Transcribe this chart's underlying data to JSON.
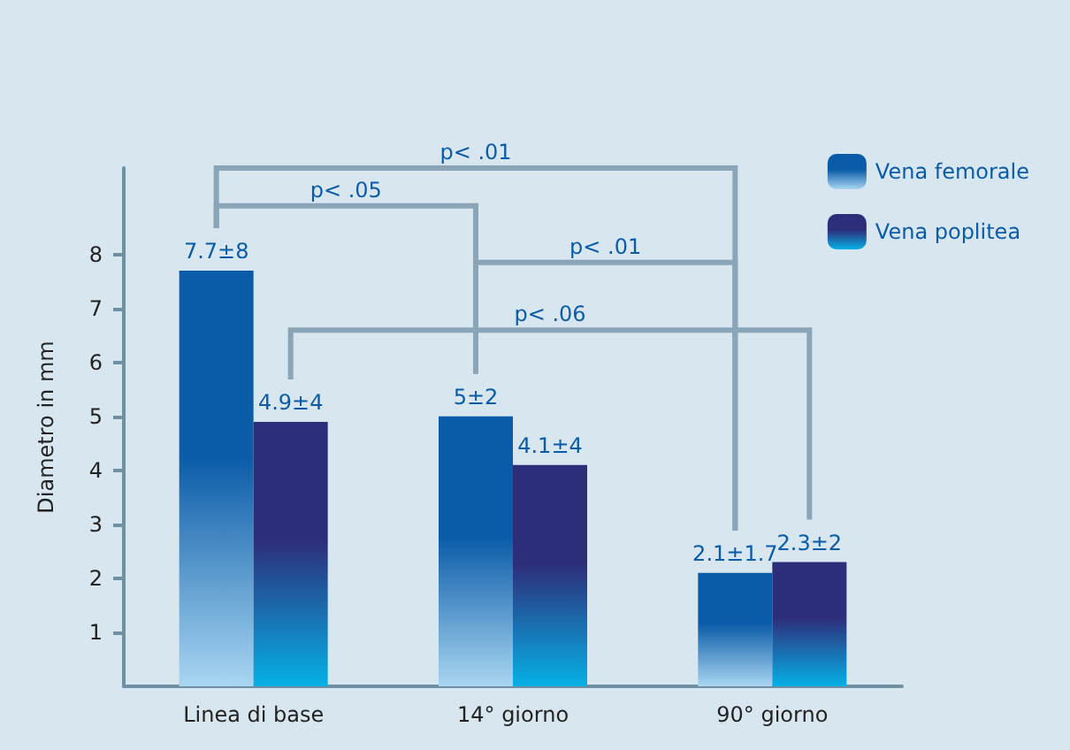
{
  "chart_data": {
    "type": "bar",
    "ylabel": "Diametro in mm",
    "categories": [
      "Linea di base",
      "14° giorno",
      "90° giorno"
    ],
    "series": [
      {
        "name": "Vena femorale",
        "color": "#0b5ca8",
        "values": [
          7.7,
          5,
          2.1
        ],
        "value_labels": [
          "7.7±8",
          "5±2",
          "2.1±1.7"
        ]
      },
      {
        "name": "Vena poplitea",
        "color": "#2d2e7a",
        "values": [
          4.9,
          4.1,
          2.3
        ],
        "value_labels": [
          "4.9±4",
          "4.1±4",
          "2.3±2"
        ]
      }
    ],
    "ylim": [
      0,
      9.6
    ],
    "yticks": [
      1,
      2,
      3,
      4,
      5,
      6,
      7,
      8
    ],
    "grid": false,
    "legend": "top right",
    "annotations": [
      "p< .01",
      "p< .05",
      "p< .01",
      "p< .06"
    ]
  }
}
